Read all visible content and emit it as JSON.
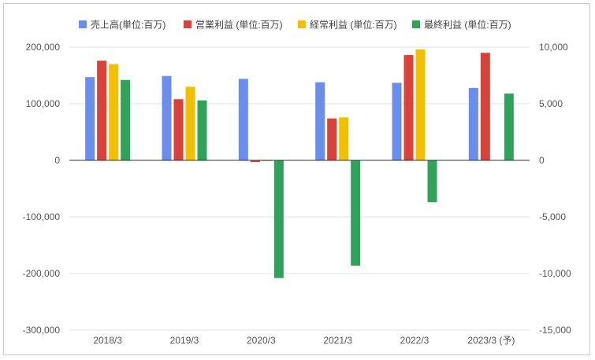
{
  "chart_data": {
    "type": "bar",
    "categories": [
      "2018/3",
      "2019/3",
      "2020/3",
      "2021/3",
      "2022/3",
      "2023/3 (予)"
    ],
    "series": [
      {
        "name": "売上高(単位:百万)",
        "axis": "left",
        "color": "#6a8ef0",
        "values": [
          147000,
          149000,
          144000,
          138000,
          137000,
          128000
        ]
      },
      {
        "name": "営業利益 (単位:百万)",
        "axis": "right",
        "color": "#d9413a",
        "values": [
          8800,
          5400,
          -150,
          3700,
          9300,
          9500
        ]
      },
      {
        "name": "経常利益 (単位:百万)",
        "axis": "right",
        "color": "#f2c000",
        "values": [
          8500,
          6500,
          -60,
          3800,
          9800,
          null
        ]
      },
      {
        "name": "最終利益 (単位:百万)",
        "axis": "right",
        "color": "#2fa35a",
        "values": [
          7100,
          5300,
          -10400,
          -9300,
          -3700,
          5900
        ]
      }
    ],
    "y_left": {
      "ylim": [
        -300000,
        200000
      ],
      "ticks": [
        "200,000",
        "100,000",
        "0",
        "-100,000",
        "-200,000",
        "-300,000"
      ]
    },
    "y_right": {
      "ylim": [
        -15000,
        10000
      ],
      "ticks": [
        "10,000",
        "5,000",
        "0",
        "-5,000",
        "-10,000",
        "-15,000"
      ]
    },
    "grid": true,
    "legend_position": "top"
  }
}
